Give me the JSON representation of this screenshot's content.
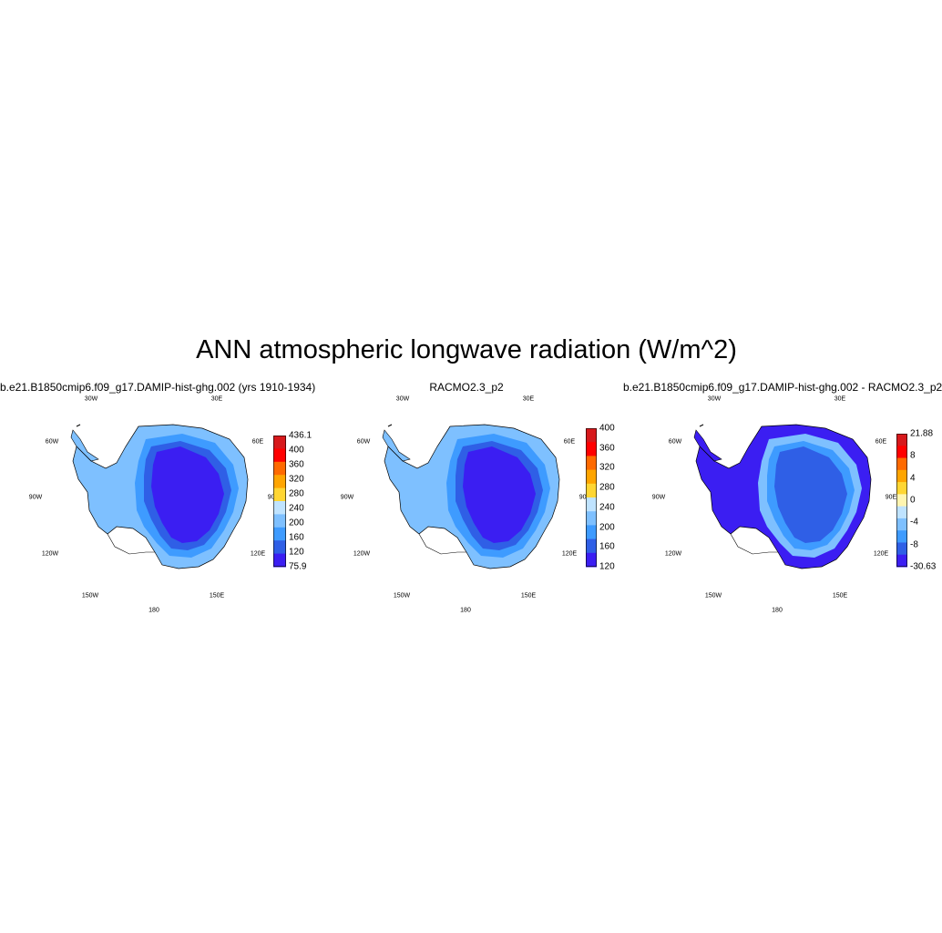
{
  "title": "ANN atmospheric longwave radiation (W/m^2)",
  "graticule_labels": [
    "30W",
    "30E",
    "60W",
    "60E",
    "90W",
    "90E",
    "120W",
    "120E",
    "150W",
    "150E",
    "180"
  ],
  "panels": [
    {
      "title": "b.e21.B1850cmip6.f09_g17.DAMIP-hist-ghg.002 (yrs 1910-1934)",
      "colorbar": {
        "labels": [
          "436.1",
          "400",
          "360",
          "320",
          "280",
          "240",
          "200",
          "160",
          "120",
          "75.9"
        ],
        "colors": [
          "#d7191c",
          "#ff0000",
          "#ff6a00",
          "#ffa500",
          "#ffd633",
          "#bfe3ff",
          "#7ec0ff",
          "#3e9bff",
          "#2f5fe6",
          "#3b1ef2"
        ]
      },
      "fills": {
        "coast": "#7ec0ff",
        "plateau_edge": "#3e9bff",
        "ring": "#2f5fe6",
        "core": "#3b1ef2"
      }
    },
    {
      "title": "RACMO2.3_p2",
      "colorbar": {
        "labels": [
          "400",
          "360",
          "320",
          "280",
          "240",
          "200",
          "160",
          "120"
        ],
        "colors": [
          "#d7191c",
          "#ff0000",
          "#ff6a00",
          "#ffa500",
          "#ffd633",
          "#bfe3ff",
          "#7ec0ff",
          "#3e9bff",
          "#2f5fe6",
          "#3b1ef2"
        ]
      },
      "fills": {
        "coast": "#7ec0ff",
        "plateau_edge": "#3e9bff",
        "ring": "#2f5fe6",
        "core": "#3b1ef2"
      }
    },
    {
      "title": "b.e21.B1850cmip6.f09_g17.DAMIP-hist-ghg.002 - RACMO2.3_p2",
      "colorbar": {
        "labels": [
          "21.88",
          "8",
          "4",
          "0",
          "-4",
          "-8",
          "-30.63"
        ],
        "colors": [
          "#d7191c",
          "#ff0000",
          "#ff6a00",
          "#ffa500",
          "#ffd633",
          "#fff5b0",
          "#bfe3ff",
          "#7ec0ff",
          "#3e9bff",
          "#2f5fe6",
          "#3b1ef2"
        ]
      },
      "fills": {
        "coast": "#3b1ef2",
        "plateau_edge": "#7ec0ff",
        "ring": "#3e9bff",
        "core": "#2f5fe6"
      }
    }
  ]
}
